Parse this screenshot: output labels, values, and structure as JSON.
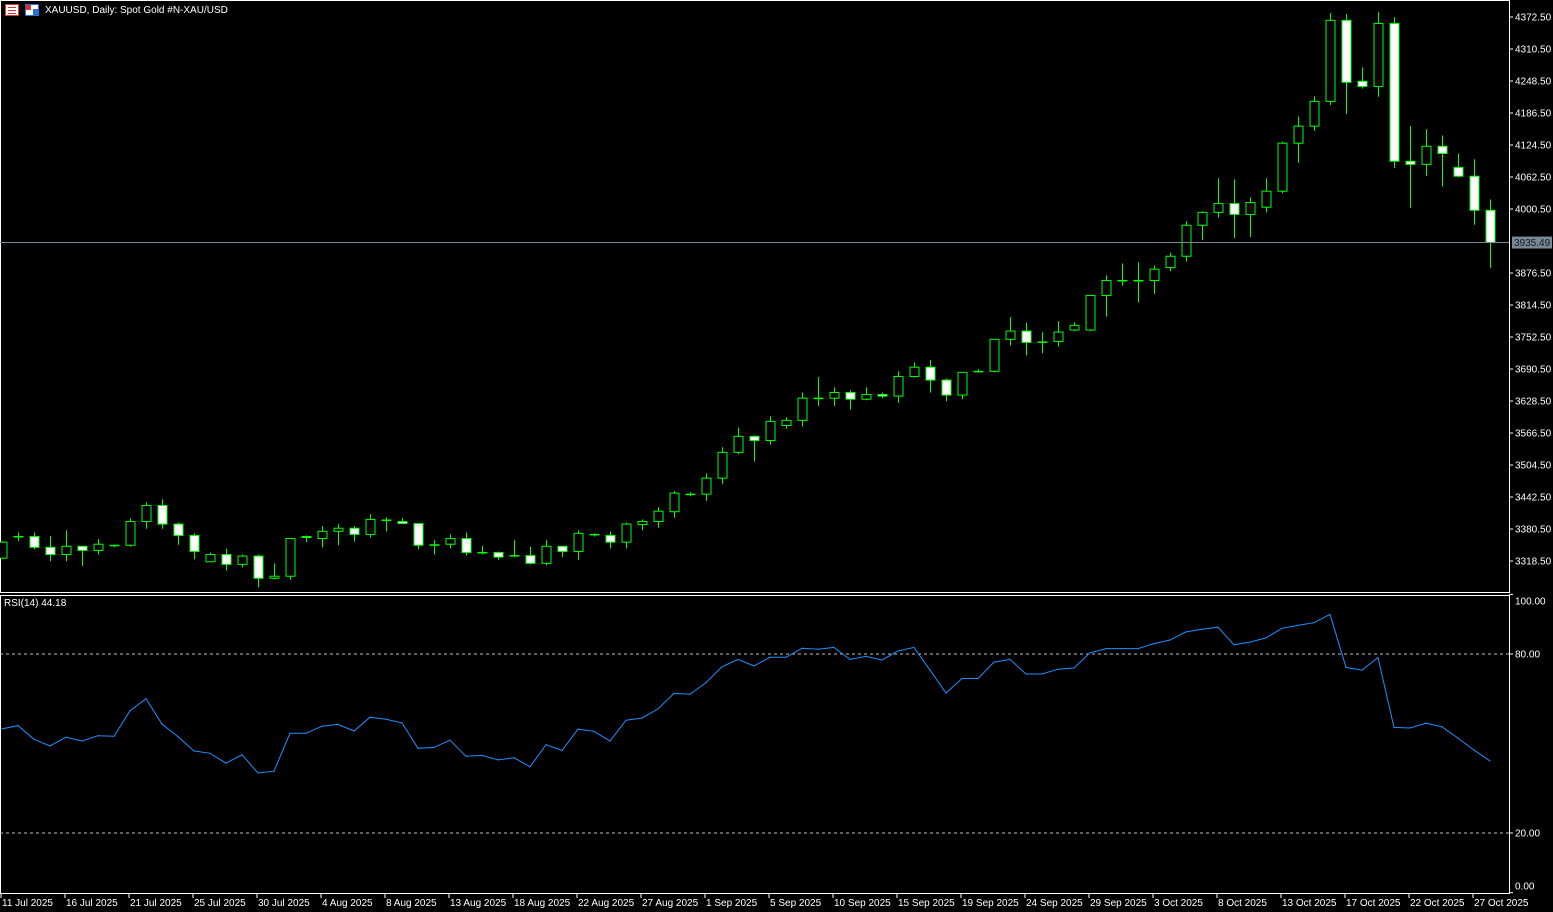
{
  "header": {
    "symbol_title": "XAUUSD, Daily:  Spot Gold #N-XAU/USD",
    "icons": [
      "list-icon",
      "save-disk-icon"
    ]
  },
  "colors": {
    "background": "#000000",
    "candle_border": "#00ff00",
    "bull_fill": "#000000",
    "bear_fill": "#ffffff",
    "current_price_line": "#778899",
    "rsi_line": "#1e90ff",
    "axis": "#ffffff",
    "level_line": "#c0c0c0"
  },
  "chart_data": [
    {
      "type": "candlestick",
      "symbol": "XAUUSD",
      "timeframe": "Daily",
      "ylim": [
        3280,
        4385
      ],
      "y_tick_labels": [
        "4372.50",
        "4310.50",
        "4248.50",
        "4186.50",
        "4124.50",
        "4062.50",
        "4000.50",
        "3876.50",
        "3814.50",
        "3752.50",
        "3690.50",
        "3628.50",
        "3566.50",
        "3504.50",
        "3442.50",
        "3380.50",
        "3318.50"
      ],
      "current_price": "3935.49",
      "x_tick_labels": [
        "11 Jul 2025",
        "16 Jul 2025",
        "21 Jul 2025",
        "25 Jul 2025",
        "30 Jul 2025",
        "4 Aug 2025",
        "8 Aug 2025",
        "13 Aug 2025",
        "18 Aug 2025",
        "22 Aug 2025",
        "27 Aug 2025",
        "1 Sep 2025",
        "5 Sep 2025",
        "10 Sep 2025",
        "15 Sep 2025",
        "19 Sep 2025",
        "24 Sep 2025",
        "29 Sep 2025",
        "3 Oct 2025",
        "8 Oct 2025",
        "13 Oct 2025",
        "17 Oct 2025",
        "22 Oct 2025",
        "27 Oct 2025"
      ],
      "ohlc_fields": [
        "open",
        "high",
        "low",
        "close"
      ],
      "ohlc": [
        [
          3324,
          3357,
          3322,
          3355
        ],
        [
          3366,
          3374,
          3357,
          3366
        ],
        [
          3366,
          3374,
          3341,
          3345
        ],
        [
          3345,
          3367,
          3318,
          3331
        ],
        [
          3331,
          3378,
          3318,
          3347
        ],
        [
          3347,
          3347,
          3309,
          3339
        ],
        [
          3339,
          3361,
          3331,
          3351
        ],
        [
          3349,
          3350,
          3345,
          3349
        ],
        [
          3349,
          3401,
          3346,
          3395
        ],
        [
          3395,
          3432,
          3381,
          3426
        ],
        [
          3426,
          3438,
          3381,
          3390
        ],
        [
          3390,
          3393,
          3350,
          3368
        ],
        [
          3368,
          3372,
          3322,
          3337
        ],
        [
          3317,
          3335,
          3316,
          3331
        ],
        [
          3331,
          3342,
          3300,
          3312
        ],
        [
          3312,
          3331,
          3306,
          3328
        ],
        [
          3328,
          3331,
          3268,
          3285
        ],
        [
          3285,
          3314,
          3283,
          3289
        ],
        [
          3289,
          3363,
          3282,
          3362
        ],
        [
          3366,
          3368,
          3355,
          3364
        ],
        [
          3362,
          3386,
          3345,
          3376
        ],
        [
          3376,
          3390,
          3349,
          3382
        ],
        [
          3382,
          3386,
          3356,
          3370
        ],
        [
          3370,
          3409,
          3364,
          3399
        ],
        [
          3398,
          3403,
          3376,
          3398
        ],
        [
          3395,
          3402,
          3390,
          3391
        ],
        [
          3391,
          3391,
          3341,
          3349
        ],
        [
          3350,
          3359,
          3331,
          3350
        ],
        [
          3351,
          3370,
          3343,
          3362
        ],
        [
          3362,
          3374,
          3329,
          3335
        ],
        [
          3335,
          3348,
          3331,
          3335
        ],
        [
          3335,
          3337,
          3321,
          3326
        ],
        [
          3329,
          3359,
          3326,
          3329
        ],
        [
          3329,
          3346,
          3312,
          3314
        ],
        [
          3314,
          3359,
          3310,
          3347
        ],
        [
          3347,
          3347,
          3326,
          3337
        ],
        [
          3337,
          3378,
          3321,
          3372
        ],
        [
          3369,
          3372,
          3366,
          3370
        ],
        [
          3368,
          3376,
          3343,
          3355
        ],
        [
          3355,
          3393,
          3343,
          3390
        ],
        [
          3389,
          3399,
          3378,
          3395
        ],
        [
          3395,
          3423,
          3383,
          3415
        ],
        [
          3414,
          3454,
          3402,
          3450
        ],
        [
          3448,
          3452,
          3444,
          3448
        ],
        [
          3448,
          3488,
          3435,
          3479
        ],
        [
          3479,
          3539,
          3468,
          3529
        ],
        [
          3529,
          3577,
          3526,
          3560
        ],
        [
          3560,
          3562,
          3511,
          3552
        ],
        [
          3552,
          3599,
          3544,
          3589
        ],
        [
          3581,
          3597,
          3575,
          3591
        ],
        [
          3591,
          3645,
          3579,
          3634
        ],
        [
          3634,
          3675,
          3619,
          3634
        ],
        [
          3634,
          3655,
          3619,
          3645
        ],
        [
          3645,
          3649,
          3612,
          3632
        ],
        [
          3632,
          3655,
          3630,
          3641
        ],
        [
          3641,
          3645,
          3634,
          3638
        ],
        [
          3638,
          3686,
          3625,
          3676
        ],
        [
          3676,
          3703,
          3674,
          3694
        ],
        [
          3694,
          3708,
          3645,
          3669
        ],
        [
          3669,
          3672,
          3628,
          3640
        ],
        [
          3640,
          3684,
          3632,
          3684
        ],
        [
          3686,
          3690,
          3684,
          3686
        ],
        [
          3686,
          3748,
          3684,
          3748
        ],
        [
          3748,
          3791,
          3736,
          3764
        ],
        [
          3764,
          3780,
          3717,
          3742
        ],
        [
          3743,
          3762,
          3721,
          3743
        ],
        [
          3744,
          3783,
          3734,
          3762
        ],
        [
          3766,
          3781,
          3764,
          3775
        ],
        [
          3766,
          3833,
          3764,
          3833
        ],
        [
          3833,
          3872,
          3792,
          3862
        ],
        [
          3862,
          3895,
          3852,
          3862
        ],
        [
          3862,
          3897,
          3819,
          3862
        ],
        [
          3862,
          3891,
          3836,
          3884
        ],
        [
          3887,
          3916,
          3880,
          3909
        ],
        [
          3909,
          3977,
          3899,
          3969
        ],
        [
          3969,
          3996,
          3940,
          3994
        ],
        [
          3994,
          4060,
          3984,
          4011
        ],
        [
          4011,
          4058,
          3944,
          3990
        ],
        [
          3990,
          4023,
          3946,
          4013
        ],
        [
          4004,
          4060,
          3994,
          4035
        ],
        [
          4035,
          4131,
          4031,
          4128
        ],
        [
          4128,
          4180,
          4090,
          4161
        ],
        [
          4161,
          4219,
          4152,
          4209
        ],
        [
          4209,
          4380,
          4202,
          4366
        ],
        [
          4366,
          4378,
          4185,
          4246
        ],
        [
          4248,
          4275,
          4234,
          4238
        ],
        [
          4238,
          4382,
          4218,
          4360
        ],
        [
          4360,
          4372,
          4080,
          4093
        ],
        [
          4093,
          4161,
          4003,
          4087
        ],
        [
          4087,
          4155,
          4065,
          4122
        ],
        [
          4122,
          4143,
          4044,
          4108
        ],
        [
          4081,
          4108,
          4062,
          4064
        ],
        [
          4064,
          4097,
          3970,
          3998
        ],
        [
          3998,
          4019,
          3886,
          3935.49
        ]
      ]
    },
    {
      "type": "line",
      "title": "RSI(14) 44.18",
      "ylim": [
        0,
        100
      ],
      "y_tick_labels": [
        "100.00",
        "80.00",
        "20.00",
        "0.00"
      ],
      "levels": [
        80,
        20
      ],
      "values": [
        54.9,
        56.0,
        51.4,
        49.2,
        52.1,
        50.8,
        52.6,
        52.4,
        61.0,
        65.0,
        56.5,
        52.3,
        47.5,
        46.7,
        43.4,
        46.2,
        40.1,
        40.7,
        53.4,
        53.4,
        55.8,
        56.4,
        54.2,
        58.8,
        58.1,
        56.9,
        48.4,
        48.7,
        51.1,
        45.7,
        46.0,
        44.5,
        45.2,
        42.2,
        49.6,
        47.7,
        54.8,
        54.1,
        50.8,
        57.8,
        58.5,
        61.6,
        66.8,
        66.5,
        70.4,
        75.7,
        78.2,
        76.0,
        78.9,
        78.9,
        81.9,
        81.6,
        82.2,
        78.2,
        79.2,
        78.0,
        81.0,
        82.2,
        74.6,
        66.9,
        71.8,
        71.8,
        77.3,
        78.2,
        73.3,
        73.3,
        74.9,
        75.3,
        80.4,
        81.8,
        81.8,
        81.8,
        83.5,
        84.7,
        87.4,
        88.3,
        89.0,
        83.1,
        84.0,
        85.4,
        88.6,
        89.6,
        90.5,
        93.3,
        75.5,
        74.6,
        78.8,
        55.4,
        55.2,
        56.8,
        55.6,
        51.8,
        47.8,
        44.18
      ]
    }
  ]
}
